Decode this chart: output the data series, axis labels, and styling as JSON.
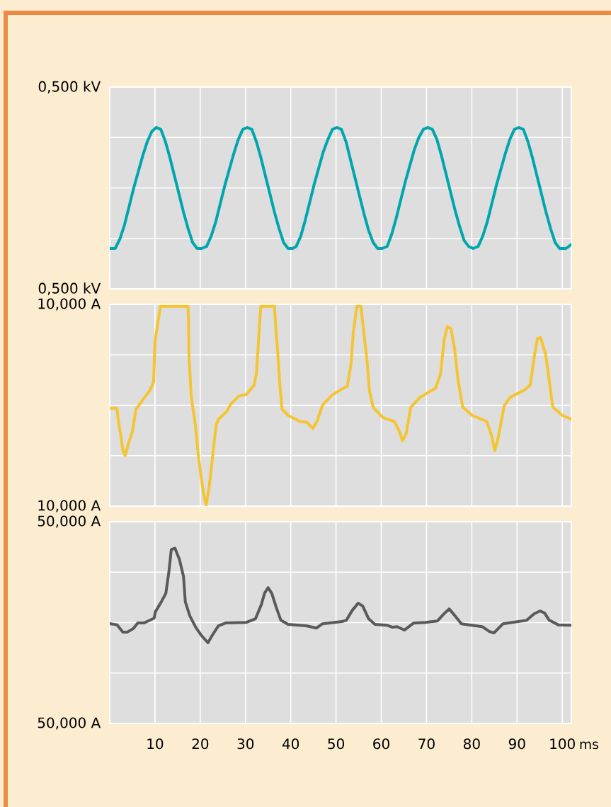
{
  "chart_data": [
    {
      "type": "line",
      "xlim": [
        0,
        102
      ],
      "xticks": [
        10,
        20,
        30,
        40,
        50,
        60,
        70,
        80,
        90,
        100
      ],
      "ylim": [
        -0.5,
        0.5
      ],
      "yticks": [
        {
          "value": -0.5,
          "label": "0,500 kV"
        },
        {
          "value": -0.25,
          "label": null
        },
        {
          "value": 0,
          "label": null
        },
        {
          "value": 0.25,
          "label": null
        },
        {
          "value": 0.5,
          "label": "0,500 kV"
        }
      ],
      "grid": true,
      "tick_labels": "y",
      "x": [
        0,
        1.2,
        2.3,
        3.3,
        4.3,
        5.3,
        6.3,
        7.3,
        8.3,
        9.3,
        10.3,
        11.3,
        12.3,
        13.3,
        14.3,
        15.3,
        16.3,
        17.3,
        18.3,
        19.3,
        20.3,
        21.4,
        22.4,
        23.4,
        24.4,
        25.4,
        26.4,
        27.4,
        28.4,
        29.4,
        30.4,
        31.4,
        32.4,
        33.4,
        34.4,
        35.4,
        36.4,
        37.4,
        38.4,
        39.4,
        40.4,
        41.2,
        42.2,
        43.2,
        44.2,
        45.2,
        46.2,
        47.2,
        48.2,
        49.2,
        50.2,
        51.2,
        52.2,
        53.2,
        54.2,
        55.2,
        56.2,
        57.2,
        58.2,
        59.2,
        60.2,
        61.3,
        62.3,
        63.3,
        64.3,
        65.3,
        66.3,
        67.3,
        68.3,
        69.3,
        70.3,
        71.3,
        72.3,
        73.3,
        74.3,
        75.3,
        76.3,
        77.3,
        78.3,
        79.3,
        80.3,
        81.4,
        82.4,
        83.4,
        84.4,
        85.4,
        86.4,
        87.4,
        88.4,
        89.4,
        90.4,
        91.4,
        92.4,
        93.4,
        94.4,
        95.4,
        96.4,
        97.4,
        98.4,
        99.4,
        100.8,
        102
      ],
      "series": [
        {
          "color": "#00a6ad",
          "values": [
            -0.3,
            -0.3,
            -0.25,
            -0.18,
            -0.09,
            0.0,
            0.08,
            0.16,
            0.23,
            0.28,
            0.3,
            0.29,
            0.23,
            0.15,
            0.06,
            -0.03,
            -0.12,
            -0.2,
            -0.27,
            -0.3,
            -0.3,
            -0.29,
            -0.24,
            -0.17,
            -0.08,
            0.01,
            0.09,
            0.17,
            0.24,
            0.29,
            0.3,
            0.29,
            0.23,
            0.15,
            0.06,
            -0.03,
            -0.12,
            -0.2,
            -0.27,
            -0.3,
            -0.3,
            -0.29,
            -0.24,
            -0.16,
            -0.07,
            0.02,
            0.1,
            0.18,
            0.24,
            0.29,
            0.3,
            0.29,
            0.23,
            0.14,
            0.05,
            -0.04,
            -0.13,
            -0.21,
            -0.27,
            -0.3,
            -0.3,
            -0.29,
            -0.23,
            -0.15,
            -0.06,
            0.03,
            0.11,
            0.19,
            0.25,
            0.29,
            0.3,
            0.29,
            0.24,
            0.16,
            0.07,
            -0.02,
            -0.11,
            -0.19,
            -0.26,
            -0.29,
            -0.3,
            -0.29,
            -0.24,
            -0.17,
            -0.08,
            0.01,
            0.09,
            0.17,
            0.24,
            0.29,
            0.3,
            0.29,
            0.23,
            0.15,
            0.06,
            -0.03,
            -0.12,
            -0.2,
            -0.27,
            -0.3,
            -0.3,
            -0.28
          ]
        }
      ]
    },
    {
      "type": "line",
      "xlim": [
        0,
        102
      ],
      "xticks": [
        10,
        20,
        30,
        40,
        50,
        60,
        70,
        80,
        90,
        100
      ],
      "ylim": [
        -10,
        10
      ],
      "yticks": [
        {
          "value": -10,
          "label": "10,000 A"
        },
        {
          "value": -5,
          "label": null
        },
        {
          "value": 0,
          "label": null
        },
        {
          "value": 5,
          "label": null
        },
        {
          "value": 10,
          "label": "10,000 A"
        }
      ],
      "grid": true,
      "tick_labels": "y",
      "x": [
        0,
        1.6,
        1.9,
        2.4,
        2.9,
        3.4,
        4.2,
        5.0,
        5.8,
        6.6,
        8.9,
        9.7,
        10.0,
        10.5,
        11.2,
        14.9,
        17.3,
        17.4,
        17.5,
        18.0,
        19.0,
        19.6,
        20.6,
        21.3,
        22.0,
        23.0,
        23.5,
        24.0,
        25.9,
        26.7,
        28.5,
        30.3,
        31.9,
        32.4,
        32.7,
        33.2,
        33.4,
        36.4,
        36.7,
        37.1,
        37.6,
        38.1,
        39.4,
        42.0,
        43.6,
        44.9,
        45.9,
        47.0,
        49.1,
        50.9,
        52.5,
        53.3,
        53.8,
        54.6,
        55.5,
        56.1,
        56.9,
        57.4,
        58.2,
        60.3,
        62.9,
        64.0,
        64.7,
        65.5,
        66.5,
        68.6,
        72.0,
        73.1,
        73.9,
        74.6,
        75.4,
        76.2,
        77.0,
        78.0,
        80.1,
        83.3,
        84.3,
        85.1,
        85.8,
        87.2,
        88.5,
        91.6,
        92.9,
        93.9,
        94.5,
        95.2,
        96.3,
        97.1,
        97.9,
        100.0,
        102.0
      ],
      "series": [
        {
          "color": "#f5c431",
          "values": [
            -0.3,
            -0.3,
            -1.5,
            -2.9,
            -4.4,
            -5.0,
            -3.7,
            -2.6,
            -0.4,
            0.1,
            1.5,
            2.3,
            6.3,
            7.8,
            9.8,
            9.8,
            9.8,
            8.5,
            5.1,
            0.9,
            -2.2,
            -5.1,
            -8.4,
            -9.9,
            -8.0,
            -4.0,
            -2.0,
            -1.4,
            -0.6,
            0.1,
            0.9,
            1.1,
            2.0,
            3.1,
            5.1,
            8.7,
            9.8,
            9.8,
            7.6,
            5.4,
            2.0,
            -0.4,
            -1.0,
            -1.6,
            -1.7,
            -2.3,
            -1.5,
            0.0,
            1.0,
            1.5,
            1.9,
            4.0,
            7.1,
            9.8,
            9.8,
            7.4,
            4.2,
            1.4,
            -0.2,
            -1.2,
            -1.6,
            -2.6,
            -3.5,
            -2.8,
            -0.2,
            0.8,
            1.7,
            3.1,
            6.5,
            7.8,
            7.6,
            5.6,
            2.4,
            -0.2,
            -1.0,
            -1.6,
            -2.9,
            -4.5,
            -3.3,
            0.0,
            0.8,
            1.5,
            2.0,
            5.1,
            6.6,
            6.7,
            5.1,
            2.5,
            -0.2,
            -1.0,
            -1.4
          ]
        }
      ]
    },
    {
      "type": "line",
      "xlim": [
        0,
        102
      ],
      "xticks": [
        10,
        20,
        30,
        40,
        50,
        60,
        70,
        80,
        90,
        100
      ],
      "ylim": [
        -50,
        50
      ],
      "yticks": [
        {
          "value": -50,
          "label": "50,000 A"
        },
        {
          "value": -25,
          "label": null
        },
        {
          "value": 0,
          "label": null
        },
        {
          "value": 25,
          "label": null
        },
        {
          "value": 50,
          "label": "50,000 A"
        }
      ],
      "grid": true,
      "xlabel": "ms",
      "x": [
        0,
        1.6,
        2.9,
        3.9,
        5.2,
        6.2,
        7.5,
        8.5,
        9.8,
        10.1,
        11.4,
        12.4,
        13.1,
        13.6,
        14.4,
        15.4,
        16.3,
        16.7,
        17.7,
        19.0,
        20.3,
        21.7,
        22.6,
        24.0,
        25.6,
        30.2,
        32.2,
        33.5,
        34.2,
        35.0,
        35.8,
        36.8,
        37.8,
        39.4,
        43.4,
        45.7,
        47.0,
        51.3,
        52.3,
        53.6,
        54.9,
        55.9,
        57.2,
        58.6,
        61.2,
        62.5,
        63.5,
        65.1,
        67.1,
        69.7,
        72.4,
        73.7,
        75.0,
        76.3,
        77.7,
        82.3,
        83.9,
        84.9,
        86.9,
        88.9,
        92.1,
        93.8,
        95.1,
        96.1,
        97.1,
        99.1,
        102.0
      ],
      "series": [
        {
          "color": "#5a5a5a",
          "values": [
            -0.5,
            -1.1,
            -4.7,
            -4.7,
            -3.0,
            -0.2,
            -0.2,
            0.8,
            2.2,
            5.4,
            10.3,
            14.5,
            25.7,
            36.2,
            36.9,
            31.3,
            22.9,
            10.3,
            3.3,
            -2.3,
            -6.5,
            -10.0,
            -6.5,
            -1.6,
            -0.2,
            0.1,
            1.9,
            8.9,
            14.5,
            17.3,
            14.5,
            7.5,
            1.2,
            -0.9,
            -1.6,
            -2.7,
            -0.6,
            0.5,
            1.2,
            6.1,
            9.6,
            8.2,
            1.9,
            -0.9,
            -1.3,
            -2.3,
            -2.0,
            -3.7,
            -0.3,
            0.1,
            0.8,
            4.0,
            6.8,
            3.3,
            -0.6,
            -2.0,
            -4.4,
            -5.1,
            -0.6,
            0.1,
            1.1,
            4.4,
            5.8,
            4.7,
            1.2,
            -1.1,
            -1.3
          ]
        }
      ]
    }
  ]
}
